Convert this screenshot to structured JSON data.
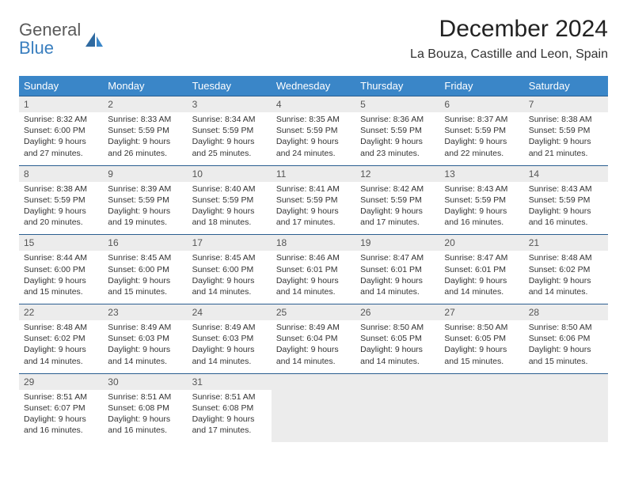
{
  "logo": {
    "line1": "General",
    "line2": "Blue"
  },
  "title": "December 2024",
  "location": "La Bouza, Castille and Leon, Spain",
  "colors": {
    "header_bg": "#3a86c8",
    "header_text": "#ffffff",
    "row_sep": "#2b5e90",
    "daynum_bg": "#ececec",
    "logo_gray": "#5a5a5a",
    "logo_blue": "#3a7fbf"
  },
  "weekdays": [
    "Sunday",
    "Monday",
    "Tuesday",
    "Wednesday",
    "Thursday",
    "Friday",
    "Saturday"
  ],
  "weeks": [
    {
      "days": [
        {
          "n": "1",
          "sr": "8:32 AM",
          "ss": "6:00 PM",
          "dl": "9 hours and 27 minutes."
        },
        {
          "n": "2",
          "sr": "8:33 AM",
          "ss": "5:59 PM",
          "dl": "9 hours and 26 minutes."
        },
        {
          "n": "3",
          "sr": "8:34 AM",
          "ss": "5:59 PM",
          "dl": "9 hours and 25 minutes."
        },
        {
          "n": "4",
          "sr": "8:35 AM",
          "ss": "5:59 PM",
          "dl": "9 hours and 24 minutes."
        },
        {
          "n": "5",
          "sr": "8:36 AM",
          "ss": "5:59 PM",
          "dl": "9 hours and 23 minutes."
        },
        {
          "n": "6",
          "sr": "8:37 AM",
          "ss": "5:59 PM",
          "dl": "9 hours and 22 minutes."
        },
        {
          "n": "7",
          "sr": "8:38 AM",
          "ss": "5:59 PM",
          "dl": "9 hours and 21 minutes."
        }
      ]
    },
    {
      "days": [
        {
          "n": "8",
          "sr": "8:38 AM",
          "ss": "5:59 PM",
          "dl": "9 hours and 20 minutes."
        },
        {
          "n": "9",
          "sr": "8:39 AM",
          "ss": "5:59 PM",
          "dl": "9 hours and 19 minutes."
        },
        {
          "n": "10",
          "sr": "8:40 AM",
          "ss": "5:59 PM",
          "dl": "9 hours and 18 minutes."
        },
        {
          "n": "11",
          "sr": "8:41 AM",
          "ss": "5:59 PM",
          "dl": "9 hours and 17 minutes."
        },
        {
          "n": "12",
          "sr": "8:42 AM",
          "ss": "5:59 PM",
          "dl": "9 hours and 17 minutes."
        },
        {
          "n": "13",
          "sr": "8:43 AM",
          "ss": "5:59 PM",
          "dl": "9 hours and 16 minutes."
        },
        {
          "n": "14",
          "sr": "8:43 AM",
          "ss": "5:59 PM",
          "dl": "9 hours and 16 minutes."
        }
      ]
    },
    {
      "days": [
        {
          "n": "15",
          "sr": "8:44 AM",
          "ss": "6:00 PM",
          "dl": "9 hours and 15 minutes."
        },
        {
          "n": "16",
          "sr": "8:45 AM",
          "ss": "6:00 PM",
          "dl": "9 hours and 15 minutes."
        },
        {
          "n": "17",
          "sr": "8:45 AM",
          "ss": "6:00 PM",
          "dl": "9 hours and 14 minutes."
        },
        {
          "n": "18",
          "sr": "8:46 AM",
          "ss": "6:01 PM",
          "dl": "9 hours and 14 minutes."
        },
        {
          "n": "19",
          "sr": "8:47 AM",
          "ss": "6:01 PM",
          "dl": "9 hours and 14 minutes."
        },
        {
          "n": "20",
          "sr": "8:47 AM",
          "ss": "6:01 PM",
          "dl": "9 hours and 14 minutes."
        },
        {
          "n": "21",
          "sr": "8:48 AM",
          "ss": "6:02 PM",
          "dl": "9 hours and 14 minutes."
        }
      ]
    },
    {
      "days": [
        {
          "n": "22",
          "sr": "8:48 AM",
          "ss": "6:02 PM",
          "dl": "9 hours and 14 minutes."
        },
        {
          "n": "23",
          "sr": "8:49 AM",
          "ss": "6:03 PM",
          "dl": "9 hours and 14 minutes."
        },
        {
          "n": "24",
          "sr": "8:49 AM",
          "ss": "6:03 PM",
          "dl": "9 hours and 14 minutes."
        },
        {
          "n": "25",
          "sr": "8:49 AM",
          "ss": "6:04 PM",
          "dl": "9 hours and 14 minutes."
        },
        {
          "n": "26",
          "sr": "8:50 AM",
          "ss": "6:05 PM",
          "dl": "9 hours and 14 minutes."
        },
        {
          "n": "27",
          "sr": "8:50 AM",
          "ss": "6:05 PM",
          "dl": "9 hours and 15 minutes."
        },
        {
          "n": "28",
          "sr": "8:50 AM",
          "ss": "6:06 PM",
          "dl": "9 hours and 15 minutes."
        }
      ]
    },
    {
      "days": [
        {
          "n": "29",
          "sr": "8:51 AM",
          "ss": "6:07 PM",
          "dl": "9 hours and 16 minutes."
        },
        {
          "n": "30",
          "sr": "8:51 AM",
          "ss": "6:08 PM",
          "dl": "9 hours and 16 minutes."
        },
        {
          "n": "31",
          "sr": "8:51 AM",
          "ss": "6:08 PM",
          "dl": "9 hours and 17 minutes."
        },
        null,
        null,
        null,
        null
      ]
    }
  ],
  "labels": {
    "sunrise": "Sunrise:",
    "sunset": "Sunset:",
    "daylight": "Daylight:"
  }
}
